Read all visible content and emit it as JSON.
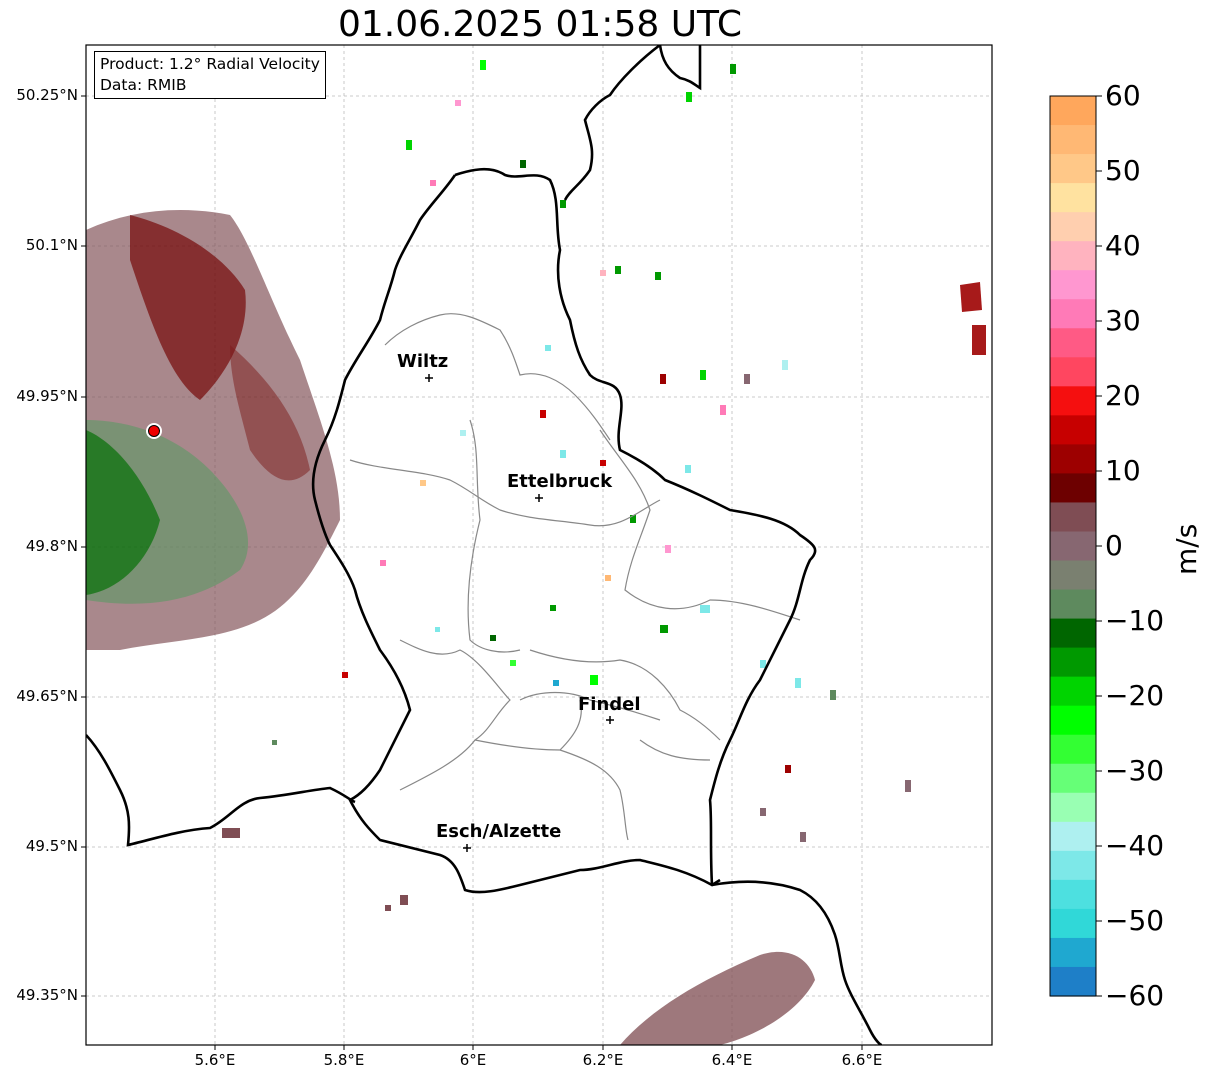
{
  "title": "01.06.2025 01:58 UTC",
  "info": {
    "product": "Product: 1.2° Radial Velocity",
    "data": "Data: RMIB"
  },
  "axes": {
    "lon_ticks": [
      "5.6°E",
      "5.8°E",
      "6°E",
      "6.2°E",
      "6.4°E",
      "6.6°E"
    ],
    "lat_ticks": [
      "50.25°N",
      "50.1°N",
      "49.95°N",
      "49.8°N",
      "49.65°N",
      "49.5°N",
      "49.35°N"
    ]
  },
  "cities": [
    {
      "name": "Wiltz"
    },
    {
      "name": "Ettelbruck"
    },
    {
      "name": "Findel"
    },
    {
      "name": "Esch/Alzette"
    }
  ],
  "colorbar": {
    "unit": "m/s",
    "ticks": [
      "60",
      "50",
      "40",
      "30",
      "20",
      "10",
      "0",
      "−10",
      "−20",
      "−30",
      "−40",
      "−50",
      "−60"
    ],
    "colors": [
      "#ffa75c",
      "#ffb874",
      "#ffc888",
      "#ffe2a0",
      "#ffcfaf",
      "#ffb3bf",
      "#ff97d0",
      "#ff7ab7",
      "#ff5a85",
      "#ff4660",
      "#f50f0f",
      "#c70000",
      "#9d0000",
      "#6d0000",
      "#7f4d54",
      "#876771",
      "#7a8070",
      "#5e8a5e",
      "#006600",
      "#009900",
      "#00d400",
      "#00ff00",
      "#33ff33",
      "#66ff77",
      "#99ffb3",
      "#aef0f0",
      "#7de8e8",
      "#4de0e0",
      "#30d8d8",
      "#1fa8d0",
      "#1e7fc8"
    ]
  },
  "radar_site": {
    "label": "radar"
  }
}
